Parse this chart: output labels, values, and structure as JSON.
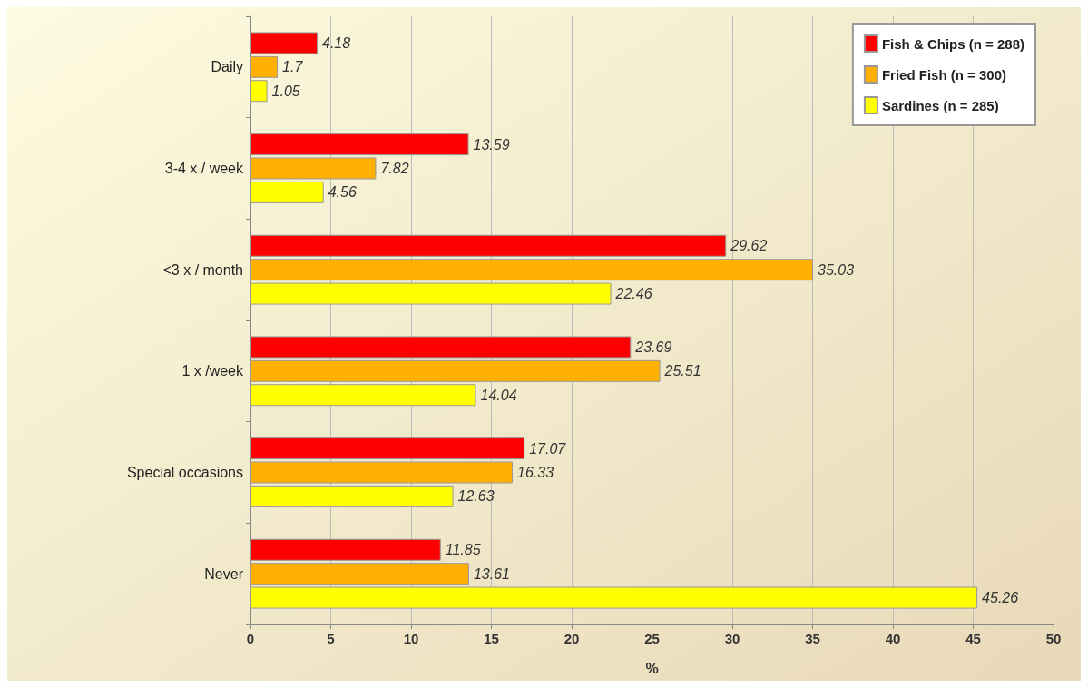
{
  "chart_data": {
    "type": "bar",
    "orientation": "horizontal",
    "xlabel": "%",
    "categories": [
      "Daily",
      "3-4 x / week",
      "<3 x / month",
      "1 x /week",
      "Special occasions",
      "Never"
    ],
    "series": [
      {
        "name": "Fish & Chips (n = 288)",
        "color": "#ff0000",
        "values": [
          4.18,
          13.59,
          29.62,
          23.69,
          17.07,
          11.85
        ]
      },
      {
        "name": "Fried Fish (n = 300)",
        "color": "#ffb000",
        "values": [
          1.7,
          7.82,
          35.03,
          25.51,
          16.33,
          13.61
        ]
      },
      {
        "name": "Sardines (n = 285)",
        "color": "#ffff00",
        "values": [
          1.05,
          4.56,
          22.46,
          14.04,
          12.63,
          45.26
        ]
      }
    ],
    "xlim": [
      0,
      50
    ],
    "xticks": [
      0,
      5,
      10,
      15,
      20,
      25,
      30,
      35,
      40,
      45,
      50
    ],
    "grid": "x",
    "legend": "top right",
    "data_labels": true
  }
}
